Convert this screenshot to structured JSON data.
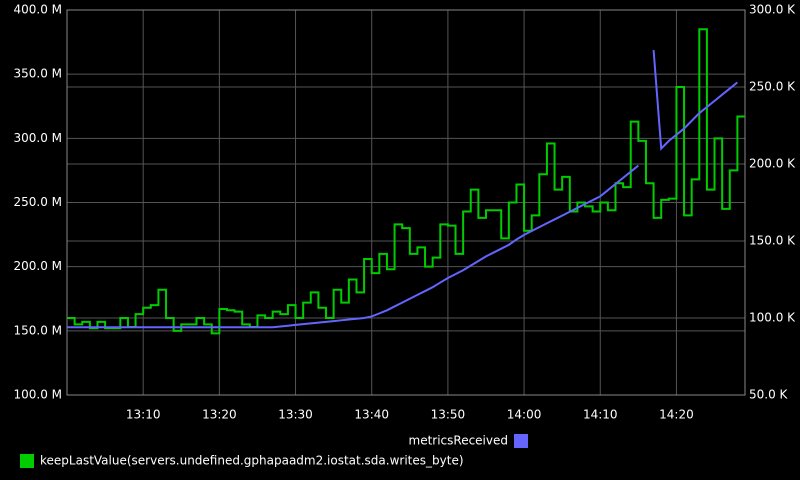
{
  "chart_data": {
    "type": "line",
    "x": [
      "13:00",
      "13:01",
      "13:02",
      "13:03",
      "13:04",
      "13:05",
      "13:06",
      "13:07",
      "13:08",
      "13:09",
      "13:10",
      "13:11",
      "13:12",
      "13:13",
      "13:14",
      "13:15",
      "13:16",
      "13:17",
      "13:18",
      "13:19",
      "13:20",
      "13:21",
      "13:22",
      "13:23",
      "13:24",
      "13:25",
      "13:26",
      "13:27",
      "13:28",
      "13:29",
      "13:30",
      "13:31",
      "13:32",
      "13:33",
      "13:34",
      "13:35",
      "13:36",
      "13:37",
      "13:38",
      "13:39",
      "13:40",
      "13:41",
      "13:42",
      "13:43",
      "13:44",
      "13:45",
      "13:46",
      "13:47",
      "13:48",
      "13:49",
      "13:50",
      "13:51",
      "13:52",
      "13:53",
      "13:54",
      "13:55",
      "13:56",
      "13:57",
      "13:58",
      "13:59",
      "14:00",
      "14:01",
      "14:02",
      "14:03",
      "14:04",
      "14:05",
      "14:06",
      "14:07",
      "14:08",
      "14:09",
      "14:10",
      "14:11",
      "14:12",
      "14:13",
      "14:14",
      "14:15",
      "14:16",
      "14:17",
      "14:18",
      "14:19",
      "14:20",
      "14:21",
      "14:22",
      "14:23",
      "14:24",
      "14:25",
      "14:26",
      "14:27",
      "14:28"
    ],
    "xlim": [
      "13:00",
      "14:29"
    ],
    "xticks": [
      "13:10",
      "13:20",
      "13:30",
      "13:40",
      "13:50",
      "14:00",
      "14:10",
      "14:20"
    ],
    "ylim": [
      100,
      400
    ],
    "yticks": [
      {
        "value": 100,
        "label": "100.0 M"
      },
      {
        "value": 150,
        "label": "150.0 M"
      },
      {
        "value": 200,
        "label": "200.0 M"
      },
      {
        "value": 250,
        "label": "250.0 M"
      },
      {
        "value": 300,
        "label": "300.0 M"
      },
      {
        "value": 350,
        "label": "350.0 M"
      },
      {
        "value": 400,
        "label": "400.0 M"
      }
    ],
    "y2lim": [
      50,
      300
    ],
    "y2ticks": [
      {
        "value": 50,
        "label": "50.0 K"
      },
      {
        "value": 100,
        "label": "100.0 K"
      },
      {
        "value": 150,
        "label": "150.0 K"
      },
      {
        "value": 200,
        "label": "200.0 K"
      },
      {
        "value": 250,
        "label": "250.0 K"
      },
      {
        "value": 300,
        "label": "300.0 K"
      }
    ],
    "grid": true,
    "series": [
      {
        "name": "keepLastValue(servers.undefined.gphapaadm2.iostat.sda.writes_byte)",
        "color": "#00cc00",
        "step": true,
        "values": [
          160,
          155,
          157,
          152,
          157,
          152,
          152,
          160,
          153,
          163,
          168,
          170,
          182,
          160,
          150,
          155,
          155,
          160,
          155,
          148,
          167,
          166,
          165,
          155,
          153,
          162,
          160,
          165,
          163,
          170,
          160,
          172,
          180,
          168,
          160,
          182,
          172,
          190,
          180,
          206,
          195,
          210,
          198,
          233,
          230,
          210,
          215,
          200,
          207,
          233,
          232,
          210,
          243,
          260,
          238,
          244,
          244,
          222,
          250,
          264,
          228,
          240,
          272,
          296,
          260,
          270,
          243,
          250,
          247,
          243,
          250,
          244,
          265,
          262,
          313,
          298,
          265,
          238,
          252,
          253,
          340,
          240,
          268,
          385,
          260,
          300,
          245,
          275,
          317
        ]
      },
      {
        "name": "metricsReceived",
        "color": "#6464ff",
        "axis": "y2",
        "values": [
          94,
          94,
          94,
          94,
          94,
          94,
          94,
          94,
          94,
          94,
          94,
          94,
          94,
          94,
          94,
          94,
          94,
          94,
          94,
          94,
          94,
          94,
          94,
          94,
          94,
          94,
          94,
          94,
          94.5,
          95,
          95.5,
          96,
          96.5,
          97,
          97.5,
          98,
          98.5,
          99,
          99.5,
          100,
          101,
          103,
          105,
          107.5,
          110,
          112.5,
          115,
          117.5,
          120,
          123,
          126,
          128.5,
          131,
          134,
          137,
          140,
          142.5,
          145,
          147.5,
          151,
          154,
          156.5,
          159,
          161.5,
          164,
          166.5,
          169,
          171.5,
          174,
          176.5,
          179,
          183,
          187,
          191,
          195,
          199,
          null,
          274,
          210,
          215,
          219,
          223,
          228,
          233,
          237,
          241,
          245,
          249,
          253
        ]
      }
    ]
  }
}
